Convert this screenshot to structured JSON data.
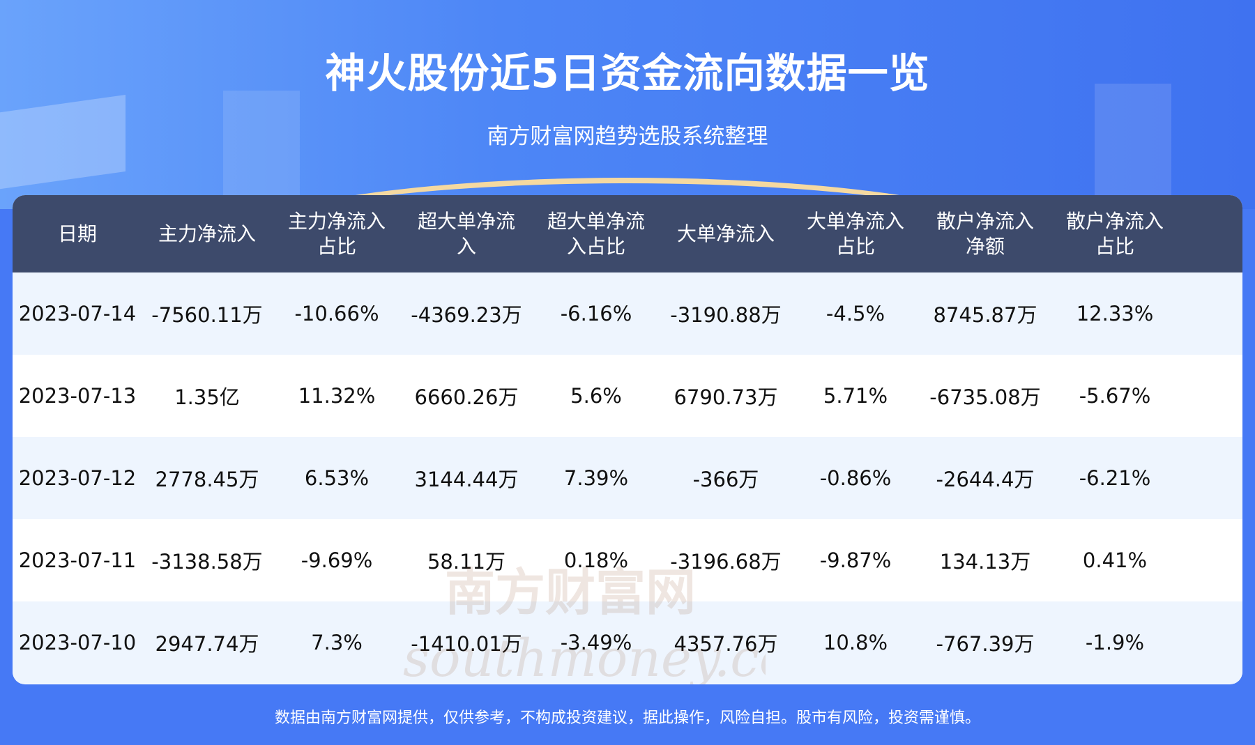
{
  "header": {
    "title": "神火股份近5日资金流向数据一览",
    "subtitle": "南方财富网趋势选股系统整理"
  },
  "table": {
    "columns": [
      "日期",
      "主力净流入",
      "主力净流入\n占比",
      "超大单净流\n入",
      "超大单净流\n入占比",
      "大单净流入",
      "大单净流入\n占比",
      "散户净流入\n净额",
      "散户净流入\n占比"
    ],
    "rows": [
      [
        "2023-07-14",
        "-7560.11万",
        "-10.66%",
        "-4369.23万",
        "-6.16%",
        "-3190.88万",
        "-4.5%",
        "8745.87万",
        "12.33%"
      ],
      [
        "2023-07-13",
        "1.35亿",
        "11.32%",
        "6660.26万",
        "5.6%",
        "6790.73万",
        "5.71%",
        "-6735.08万",
        "-5.67%"
      ],
      [
        "2023-07-12",
        "2778.45万",
        "6.53%",
        "3144.44万",
        "7.39%",
        "-366万",
        "-0.86%",
        "-2644.4万",
        "-6.21%"
      ],
      [
        "2023-07-11",
        "-3138.58万",
        "-9.69%",
        "58.11万",
        "0.18%",
        "-3196.68万",
        "-9.87%",
        "134.13万",
        "0.41%"
      ],
      [
        "2023-07-10",
        "2947.74万",
        "7.3%",
        "-1410.01万",
        "-3.49%",
        "4357.76万",
        "10.8%",
        "-767.39万",
        "-1.9%"
      ]
    ]
  },
  "watermark": {
    "cn": "南方财富网",
    "en": "southmoney.com"
  },
  "footer": {
    "disclaimer": "数据由南方财富网提供，仅供参考，不构成投资建议，据此操作，风险自担。股市有风险，投资需谨慎。"
  },
  "colors": {
    "background": "#4679f5",
    "header_row": "#3d4a6b",
    "alt_row": "#eef5fe"
  }
}
